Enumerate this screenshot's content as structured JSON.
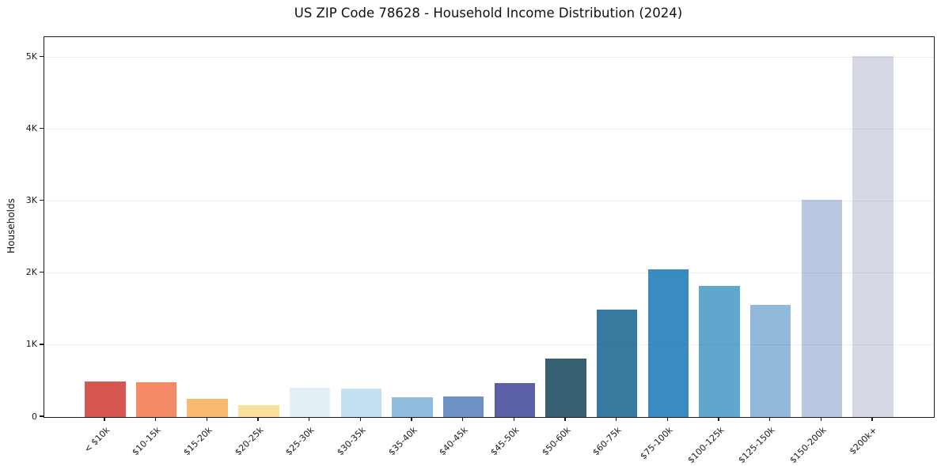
{
  "chart_data": {
    "type": "bar",
    "title": "US ZIP Code 78628 - Household Income Distribution (2024)",
    "xlabel": "",
    "ylabel": "Households",
    "categories": [
      "< $10k",
      "$10-15k",
      "$15-20k",
      "$20-25k",
      "$25-30k",
      "$30-35k",
      "$35-40k",
      "$40-45k",
      "$45-50k",
      "$50-60k",
      "$60-75k",
      "$75-100k",
      "$100-125k",
      "$125-150k",
      "$150-200k",
      "$200k+"
    ],
    "values": [
      500,
      480,
      250,
      170,
      410,
      400,
      280,
      290,
      470,
      810,
      1490,
      2050,
      1820,
      1560,
      3020,
      5020
    ],
    "bar_colors": [
      "#d6574f",
      "#f58a68",
      "#f9ba6f",
      "#fbdf9c",
      "#e4f0f5",
      "#c3e1f0",
      "#90bcdd",
      "#6b92c3",
      "#5b5fa7",
      "#375f72",
      "#38799f",
      "#3a8bc2",
      "#60a7cd",
      "#92b8da",
      "#b9c8e0",
      "#d6d8e5"
    ],
    "ylim": [
      0,
      5280
    ],
    "yticks": [
      {
        "value": 0,
        "label": "0"
      },
      {
        "value": 1000,
        "label": "1K"
      },
      {
        "value": 2000,
        "label": "2K"
      },
      {
        "value": 3000,
        "label": "3K"
      },
      {
        "value": 4000,
        "label": "4K"
      },
      {
        "value": 5000,
        "label": "5K"
      }
    ],
    "grid": "horizontal",
    "legend": "none",
    "colors": {
      "spine": "#1a1a1a",
      "grid": "#ebebee",
      "text": "#1a1a1a",
      "background": "#ffffff"
    }
  }
}
